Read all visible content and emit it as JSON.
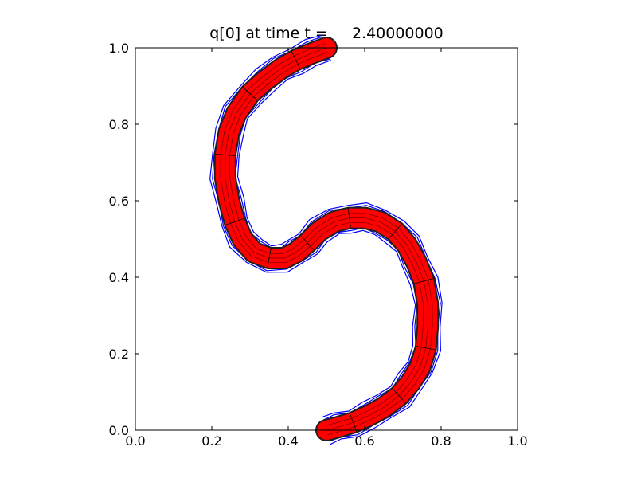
{
  "chart_data": {
    "type": "line",
    "title": "q[0] at time t =     2.40000000",
    "xlabel": "",
    "ylabel": "",
    "xlim": [
      0.0,
      1.0
    ],
    "ylim": [
      0.0,
      1.0
    ],
    "xticks": [
      "0.0",
      "0.2",
      "0.4",
      "0.6",
      "0.8",
      "1.0"
    ],
    "yticks": [
      "0.0",
      "0.2",
      "0.4",
      "0.6",
      "0.8",
      "1.0"
    ],
    "grid": false,
    "legend": "none",
    "description_colors": {
      "filled_band": "#ff0000",
      "contours": "#0000ff",
      "patch_edges": "#000000"
    },
    "band_centerline": {
      "x": [
        0.5,
        0.46,
        0.42,
        0.38,
        0.34,
        0.3,
        0.265,
        0.245,
        0.235,
        0.235,
        0.245,
        0.26,
        0.28,
        0.31,
        0.35,
        0.39,
        0.42,
        0.45,
        0.48,
        0.52,
        0.56,
        0.6,
        0.64,
        0.68,
        0.71,
        0.735,
        0.755,
        0.765,
        0.765,
        0.76,
        0.745,
        0.72,
        0.69,
        0.65,
        0.61,
        0.57,
        0.53,
        0.5
      ],
      "y": [
        1.0,
        0.985,
        0.968,
        0.945,
        0.915,
        0.88,
        0.83,
        0.78,
        0.72,
        0.66,
        0.6,
        0.545,
        0.5,
        0.465,
        0.45,
        0.45,
        0.465,
        0.49,
        0.52,
        0.545,
        0.555,
        0.555,
        0.545,
        0.52,
        0.485,
        0.44,
        0.39,
        0.33,
        0.27,
        0.215,
        0.165,
        0.125,
        0.09,
        0.06,
        0.038,
        0.02,
        0.008,
        0.0
      ]
    },
    "contour_offsets": [
      -0.03,
      -0.022,
      0.022,
      0.03,
      -0.036,
      0.036
    ]
  }
}
